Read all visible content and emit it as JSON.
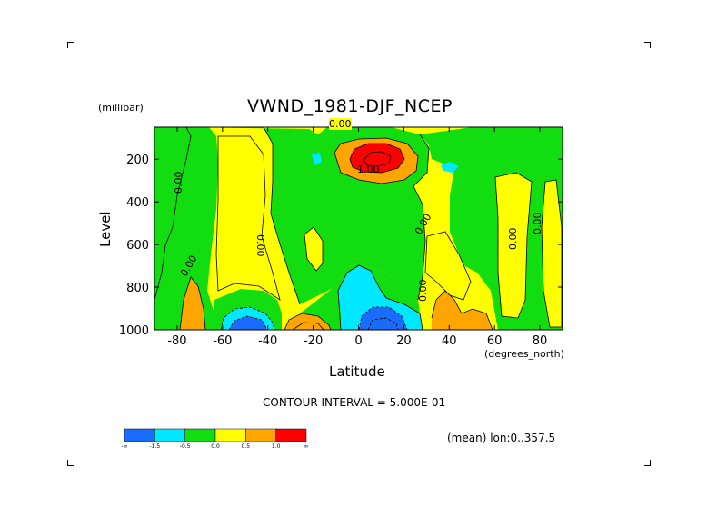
{
  "chart_data": {
    "type": "heatmap",
    "title": "VWND_1981-DJF_NCEP",
    "xlabel": "Latitude",
    "xunit": "(degrees_north)",
    "ylabel": "Level",
    "yunit": "(millibar)",
    "xlim": [
      -90,
      90
    ],
    "ylim": [
      1000,
      50
    ],
    "x_ticks": [
      "-80",
      "-60",
      "-40",
      "-20",
      "0",
      "20",
      "40",
      "60",
      "80"
    ],
    "x_tick_values": [
      -80,
      -60,
      -40,
      -20,
      0,
      20,
      40,
      60,
      80
    ],
    "y_ticks": [
      "200",
      "400",
      "600",
      "800",
      "1000"
    ],
    "y_tick_values": [
      200,
      400,
      600,
      800,
      1000
    ],
    "contour_labels": [
      "0.00",
      "0.00",
      "0.00",
      "0.00",
      "0.00",
      "0.00",
      "0.00",
      "0.00",
      "1.00"
    ],
    "contour_interval_label": "CONTOUR INTERVAL = 5.000E-01",
    "mean_label": "(mean) lon:0..357.5",
    "colorbar": {
      "ticks": [
        "-∞",
        "-1.5",
        "-0.5",
        "0.0",
        "0.5",
        "1.0",
        "∞"
      ],
      "colors": [
        "#1a6cff",
        "#00e8ff",
        "#11dd11",
        "#ffff00",
        "#ffa500",
        "#ff0000"
      ]
    }
  }
}
